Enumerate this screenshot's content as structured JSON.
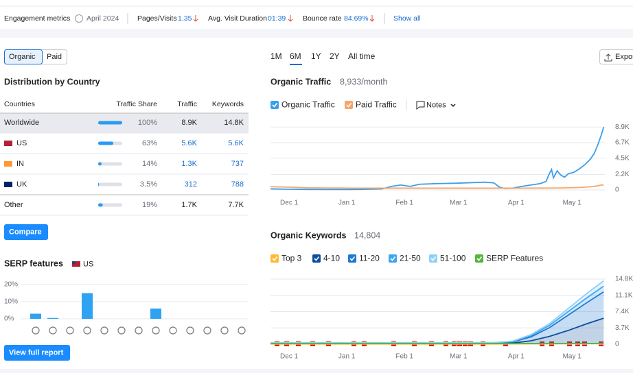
{
  "metrics": {
    "label": "Engagement metrics",
    "date": "April 2024",
    "items": [
      {
        "label": "Pages/Visits",
        "value": "1.35"
      },
      {
        "label": "Avg. Visit Duration",
        "value": "01:39"
      },
      {
        "label": "Bounce rate",
        "value": "84.69%"
      }
    ],
    "show_all": "Show all"
  },
  "tabs": [
    "Organic",
    "Paid"
  ],
  "distribution": {
    "title": "Distribution by Country",
    "headers": [
      "Countries",
      "Traffic Share",
      "Traffic",
      "Keywords"
    ],
    "rows": [
      [
        "Worldwide",
        "100%",
        "8.9K",
        "14.8K"
      ],
      [
        "US",
        "63%",
        "5.6K",
        "5.6K"
      ],
      [
        "IN",
        "14%",
        "1.3K",
        "737"
      ],
      [
        "UK",
        "3.5%",
        "312",
        "788"
      ],
      [
        "Other",
        "19%",
        "1.7K",
        "7.7K"
      ]
    ],
    "share": [
      100,
      63,
      14,
      3.5,
      19
    ]
  },
  "compare": "Compare",
  "view_full_report": "View full report",
  "periods": [
    "1M",
    "6M",
    "1Y",
    "2Y",
    "All time"
  ],
  "export": "Export",
  "notes": "Notes",
  "chart_data": [
    {
      "type": "bar",
      "title": "SERP features",
      "subtitle": "US",
      "categories": [
        null,
        null,
        null,
        null,
        null,
        null,
        null,
        null,
        null,
        null,
        null,
        null,
        null
      ],
      "values": [
        3,
        0.5,
        0,
        15,
        0,
        0,
        0,
        6,
        0,
        0,
        0,
        0,
        0
      ],
      "color": "#2ea3f2",
      "ylim": [
        0,
        20
      ],
      "yticks": [
        {
          "value": 0,
          "label": "0%"
        },
        {
          "value": 10,
          "label": "10%"
        },
        {
          "value": 20,
          "label": "20%"
        }
      ],
      "grid": true
    },
    {
      "type": "line",
      "title": "Organic Traffic",
      "subtitle": "8,933/month",
      "x": [
        -10,
        0,
        10,
        20,
        30,
        40,
        50,
        55,
        60,
        65,
        70,
        80,
        90,
        100,
        105,
        110,
        113,
        116,
        120,
        125,
        130,
        135,
        138,
        140,
        141,
        142,
        144,
        146,
        148,
        150,
        153,
        156,
        159,
        162,
        164,
        166,
        168,
        169
      ],
      "series": [
        {
          "name": "Organic Traffic",
          "color": "#3aa0ec",
          "values": [
            150,
            100,
            80,
            60,
            60,
            90,
            150,
            500,
            700,
            500,
            800,
            900,
            950,
            1050,
            1100,
            1000,
            400,
            200,
            250,
            500,
            700,
            900,
            1200,
            2400,
            2900,
            1700,
            2700,
            2100,
            1800,
            2300,
            2500,
            3000,
            3600,
            4400,
            5200,
            6500,
            8000,
            8900
          ]
        },
        {
          "name": "Paid Traffic",
          "color": "#f5a56b",
          "values": [
            450,
            400,
            300,
            280,
            260,
            250,
            250,
            250,
            250,
            250,
            250,
            250,
            250,
            250,
            250,
            250,
            250,
            250,
            250,
            250,
            260,
            260,
            270,
            270,
            270,
            270,
            280,
            280,
            290,
            300,
            320,
            350,
            400,
            450,
            500,
            600,
            700,
            700
          ]
        }
      ],
      "xlim": [
        -10,
        170
      ],
      "xticks": [
        {
          "value": 0,
          "label": "Dec 1"
        },
        {
          "value": 31,
          "label": "Jan 1"
        },
        {
          "value": 62,
          "label": "Feb 1"
        },
        {
          "value": 91,
          "label": "Mar 1"
        },
        {
          "value": 122,
          "label": "Apr 1"
        },
        {
          "value": 152,
          "label": "May 1"
        }
      ],
      "ylim": [
        0,
        9900
      ],
      "yticks": [
        0,
        {
          "value": 2200,
          "label": "2.2K"
        },
        {
          "value": 4500,
          "label": "4.5K"
        },
        {
          "value": 6700,
          "label": "6.7K"
        },
        {
          "value": 8900,
          "label": "8.9K"
        }
      ],
      "grid": true
    },
    {
      "type": "area",
      "title": "Organic Keywords",
      "subtitle": "14,804",
      "x": [
        -10,
        20,
        50,
        80,
        110,
        120,
        130,
        140,
        150,
        160,
        169
      ],
      "series": [
        {
          "name": "Top 3",
          "color": "#ffb933",
          "stacked": true,
          "values": [
            50,
            50,
            50,
            50,
            50,
            60,
            80,
            100,
            130,
            160,
            200
          ]
        },
        {
          "name": "4-10",
          "color": "#0b4ea2",
          "stacked": true,
          "values": [
            100,
            100,
            100,
            100,
            120,
            200,
            700,
            1700,
            3000,
            4500,
            5700
          ]
        },
        {
          "name": "11-20",
          "color": "#1f78d1",
          "stacked": true,
          "values": [
            100,
            100,
            100,
            100,
            120,
            250,
            900,
            2000,
            3500,
            4800,
            6000
          ]
        },
        {
          "name": "21-50",
          "color": "#3ea6f0",
          "stacked": true,
          "values": [
            50,
            50,
            50,
            50,
            60,
            100,
            300,
            500,
            800,
            1100,
            1300
          ]
        },
        {
          "name": "51-100",
          "color": "#8fd0f8",
          "stacked": true,
          "values": [
            30,
            30,
            30,
            30,
            40,
            80,
            200,
            400,
            700,
            1000,
            1200
          ]
        },
        {
          "name": "SERP Features",
          "color": "#55b63b",
          "stacked": false,
          "values": [
            150,
            150,
            150,
            150,
            150,
            150,
            150,
            150,
            150,
            150,
            150
          ]
        }
      ],
      "xlim": [
        -10,
        170
      ],
      "xticks": [
        {
          "value": 0,
          "label": "Dec 1"
        },
        {
          "value": 31,
          "label": "Jan 1"
        },
        {
          "value": 62,
          "label": "Feb 1"
        },
        {
          "value": 91,
          "label": "Mar 1"
        },
        {
          "value": 122,
          "label": "Apr 1"
        },
        {
          "value": 152,
          "label": "May 1"
        }
      ],
      "ylim": [
        0,
        15900
      ],
      "yticks": [
        0,
        {
          "value": 3700,
          "label": "3.7K"
        },
        {
          "value": 7400,
          "label": "7.4K"
        },
        {
          "value": 11100,
          "label": "11.1K"
        },
        {
          "value": 14800,
          "label": "14.8K"
        }
      ],
      "grid": true
    }
  ]
}
